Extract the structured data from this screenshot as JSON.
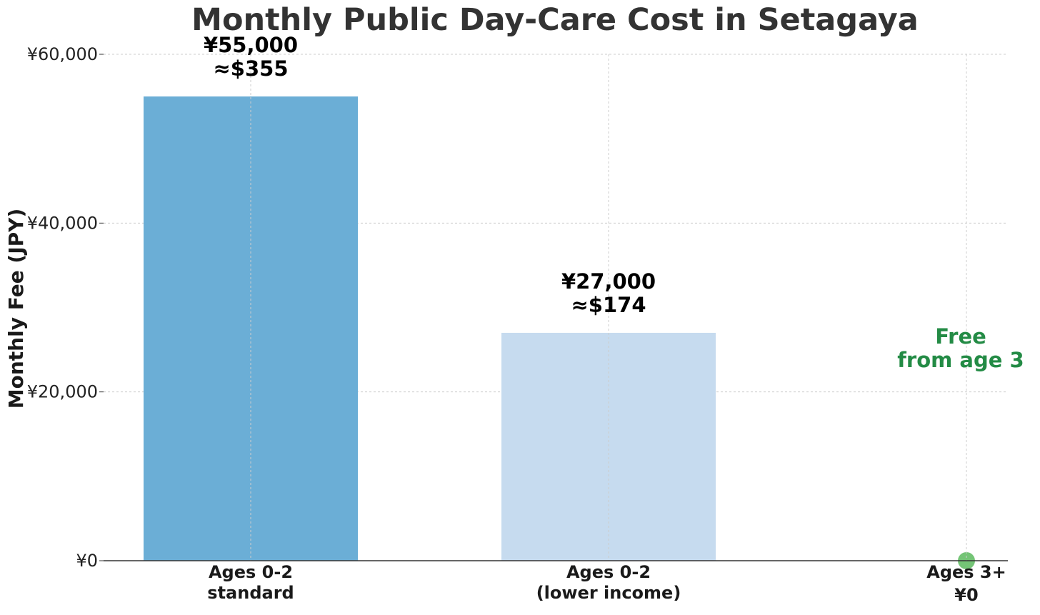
{
  "chart_data": {
    "type": "bar",
    "title": "Monthly Public Day-Care Cost in Setagaya",
    "xlabel": "",
    "ylabel": "Monthly Fee (JPY)",
    "ylim": [
      0,
      60000
    ],
    "yticks": [
      0,
      20000,
      40000,
      60000
    ],
    "ytick_labels": [
      "¥0",
      "¥20,000",
      "¥40,000",
      "¥60,000"
    ],
    "grid": true,
    "categories": [
      [
        "Ages 0-2",
        "standard"
      ],
      [
        "Ages 0-2",
        "(lower income)"
      ],
      [
        "Ages 3+",
        "¥0"
      ]
    ],
    "values": [
      55000,
      27000,
      0
    ],
    "colors": [
      "#6baed6",
      "#c6dbef",
      "#74c476"
    ],
    "data_labels": [
      [
        "¥55,000",
        "≈$355"
      ],
      [
        "¥27,000",
        "≈$174"
      ],
      []
    ],
    "annotations": [
      {
        "lines": [
          "Free",
          "from age 3"
        ],
        "category_index": 2,
        "color": "#238b45"
      }
    ]
  }
}
